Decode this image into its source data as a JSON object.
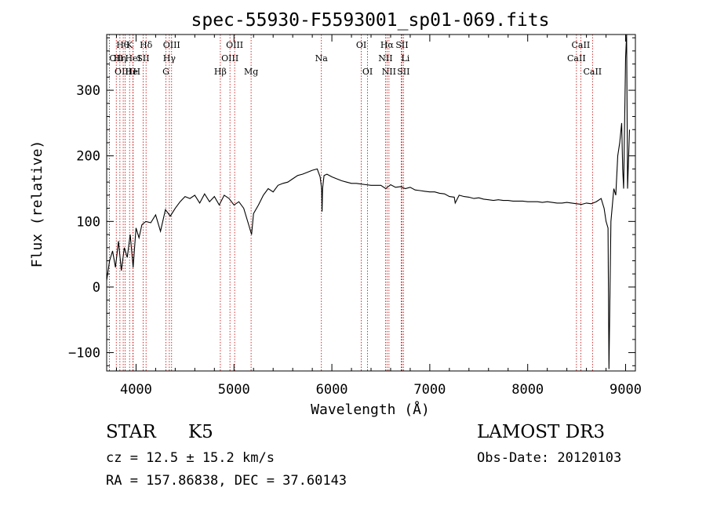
{
  "chart_data": {
    "type": "line",
    "title": "spec-55930-F5593001_sp01-069.fits",
    "xlabel": "Wavelength (Å)",
    "ylabel": "Flux (relative)",
    "xlim": [
      3700,
      9100
    ],
    "ylim": [
      -128,
      385
    ],
    "xticks": [
      4000,
      5000,
      6000,
      7000,
      8000,
      9000
    ],
    "yticks": [
      -100,
      0,
      100,
      200,
      300
    ],
    "line_color": "#000000",
    "marker_color": "#c00000",
    "series": [
      {
        "name": "flux",
        "x": [
          3700,
          3730,
          3760,
          3790,
          3820,
          3850,
          3880,
          3910,
          3940,
          3970,
          4000,
          4030,
          4060,
          4100,
          4150,
          4200,
          4250,
          4300,
          4350,
          4400,
          4450,
          4500,
          4550,
          4600,
          4650,
          4700,
          4750,
          4800,
          4850,
          4900,
          4950,
          5000,
          5050,
          5100,
          5150,
          5180,
          5200,
          5250,
          5300,
          5350,
          5400,
          5450,
          5500,
          5550,
          5600,
          5650,
          5700,
          5750,
          5800,
          5850,
          5880,
          5895,
          5900,
          5905,
          5920,
          5950,
          6000,
          6050,
          6100,
          6150,
          6200,
          6250,
          6300,
          6350,
          6400,
          6450,
          6500,
          6550,
          6600,
          6650,
          6700,
          6750,
          6800,
          6850,
          6900,
          6950,
          7000,
          7050,
          7100,
          7150,
          7200,
          7250,
          7260,
          7300,
          7350,
          7400,
          7450,
          7500,
          7550,
          7600,
          7650,
          7700,
          7750,
          7800,
          7850,
          7900,
          7950,
          8000,
          8050,
          8100,
          8150,
          8200,
          8250,
          8300,
          8350,
          8400,
          8450,
          8500,
          8550,
          8600,
          8650,
          8700,
          8750,
          8780,
          8800,
          8820,
          8830,
          8850,
          8880,
          8900,
          8920,
          8940,
          8960,
          8970,
          8980,
          9000,
          9010,
          9020,
          9040
        ],
        "y": [
          10,
          40,
          55,
          30,
          70,
          25,
          60,
          45,
          80,
          30,
          90,
          75,
          95,
          100,
          98,
          110,
          85,
          118,
          108,
          120,
          130,
          138,
          135,
          140,
          128,
          142,
          130,
          138,
          125,
          140,
          135,
          125,
          130,
          120,
          95,
          80,
          112,
          125,
          140,
          150,
          145,
          155,
          158,
          160,
          165,
          170,
          172,
          175,
          178,
          180,
          168,
          150,
          115,
          150,
          170,
          172,
          168,
          165,
          162,
          160,
          158,
          158,
          157,
          156,
          155,
          155,
          155,
          150,
          156,
          152,
          153,
          150,
          152,
          148,
          147,
          146,
          145,
          145,
          143,
          142,
          138,
          137,
          128,
          140,
          138,
          137,
          135,
          136,
          134,
          133,
          132,
          133,
          132,
          132,
          131,
          131,
          131,
          130,
          130,
          130,
          129,
          130,
          129,
          128,
          128,
          129,
          128,
          127,
          126,
          128,
          127,
          130,
          135,
          120,
          100,
          90,
          -125,
          100,
          150,
          140,
          200,
          220,
          250,
          180,
          150,
          350,
          385,
          150,
          240
        ]
      }
    ],
    "lines": [
      {
        "label": "Hθ",
        "x": 3798,
        "row": 1,
        "anchor": "start"
      },
      {
        "label": "OII",
        "x": 3727,
        "row": 2,
        "anchor": "start"
      },
      {
        "label": "OIII",
        "x": 3869,
        "row": 3,
        "anchor": "middle"
      },
      {
        "label": "He",
        "x": 3889,
        "row": 3,
        "anchor": "start"
      },
      {
        "label": "Hη",
        "x": 3835,
        "row": 2,
        "anchor": "middle"
      },
      {
        "label": "K",
        "x": 3934,
        "row": 1,
        "anchor": "middle"
      },
      {
        "label": "HeI",
        "x": 3970,
        "row": 2,
        "anchor": "middle"
      },
      {
        "label": "H",
        "x": 3968,
        "row": 3,
        "anchor": "start"
      },
      {
        "label": "SII",
        "x": 4072,
        "row": 2,
        "anchor": "middle"
      },
      {
        "label": "Hδ",
        "x": 4102,
        "row": 1,
        "anchor": "middle"
      },
      {
        "label": "OIII",
        "x": 4363,
        "row": 1,
        "anchor": "middle"
      },
      {
        "label": "Hγ",
        "x": 4340,
        "row": 2,
        "anchor": "middle"
      },
      {
        "label": "G",
        "x": 4305,
        "row": 3,
        "anchor": "middle"
      },
      {
        "label": "Hβ",
        "x": 4861,
        "row": 3,
        "anchor": "middle"
      },
      {
        "label": "OIII",
        "x": 5007,
        "row": 1,
        "anchor": "middle"
      },
      {
        "label": "OIII",
        "x": 4959,
        "row": 2,
        "anchor": "middle"
      },
      {
        "label": "Mg",
        "x": 5175,
        "row": 3,
        "anchor": "middle"
      },
      {
        "label": "Na",
        "x": 5893,
        "row": 2,
        "anchor": "middle"
      },
      {
        "label": "OI",
        "x": 6300,
        "row": 1,
        "anchor": "middle"
      },
      {
        "label": "OI",
        "x": 6364,
        "row": 3,
        "anchor": "middle"
      },
      {
        "label": "Hα",
        "x": 6563,
        "row": 1,
        "anchor": "middle"
      },
      {
        "label": "NII",
        "x": 6548,
        "row": 2,
        "anchor": "middle"
      },
      {
        "label": "NII",
        "x": 6583,
        "row": 3,
        "anchor": "middle"
      },
      {
        "label": "SII",
        "x": 6716,
        "row": 1,
        "anchor": "middle"
      },
      {
        "label": "Li",
        "x": 6708,
        "row": 2,
        "anchor": "start"
      },
      {
        "label": "SII",
        "x": 6731,
        "row": 3,
        "anchor": "middle"
      },
      {
        "label": "CaII",
        "x": 8542,
        "row": 1,
        "anchor": "middle"
      },
      {
        "label": "CaII",
        "x": 8498,
        "row": 2,
        "anchor": "middle"
      },
      {
        "label": "CaII",
        "x": 8662,
        "row": 3,
        "anchor": "middle"
      }
    ]
  },
  "info": {
    "class": "STAR",
    "subclass": "K5",
    "survey": "LAMOST DR3",
    "cz": "cz = 12.5 ± 15.2 km/s",
    "obs_date": "Obs-Date: 20120103",
    "coords": "RA = 157.86838, DEC =  37.60143"
  }
}
